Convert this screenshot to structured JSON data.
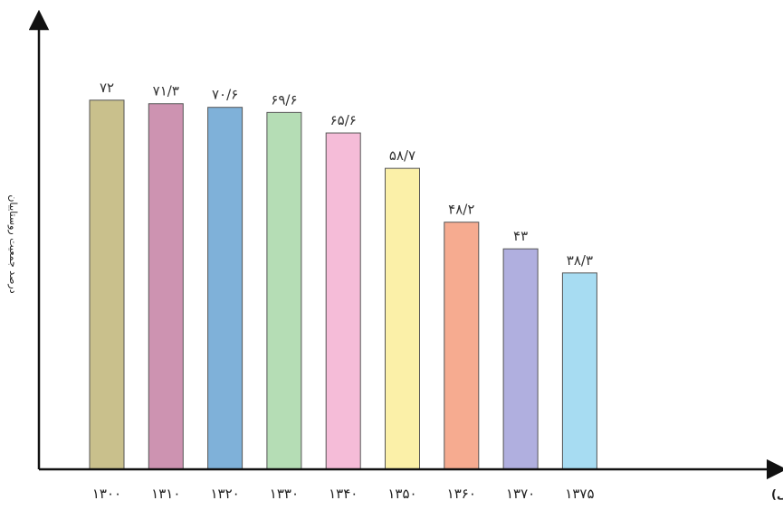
{
  "chart_data": {
    "type": "bar",
    "categories": [
      "۱۳۰۰",
      "۱۳۱۰",
      "۱۳۲۰",
      "۱۳۳۰",
      "۱۳۴۰",
      "۱۳۵۰",
      "۱۳۶۰",
      "۱۳۷۰",
      "۱۳۷۵"
    ],
    "values": [
      72,
      71.3,
      70.6,
      69.6,
      65.6,
      58.7,
      48.2,
      43,
      38.3
    ],
    "value_labels": [
      "۷۲",
      "۷۱/۳",
      "۷۰/۶",
      "۶۹/۶",
      "۶۵/۶",
      "۵۸/۷",
      "۴۸/۲",
      "۴۳",
      "۳۸/۳"
    ],
    "colors": [
      "#c9c08c",
      "#cd93b1",
      "#7fb1d9",
      "#b5ddb5",
      "#f5bcd8",
      "#fbf0a8",
      "#f6ab90",
      "#b0afdf",
      "#a7dcf2"
    ],
    "title": "",
    "xlabel": "سال (هجری شمسی)",
    "ylabel": "درصد جمعیت روستاییان",
    "ylim": [
      0,
      90
    ],
    "grid": false,
    "legend": "none"
  }
}
